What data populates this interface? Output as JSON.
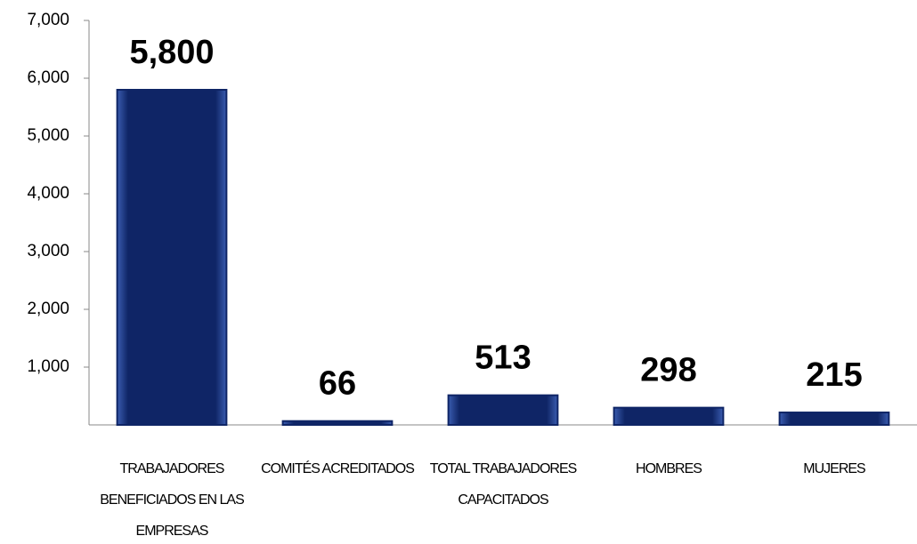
{
  "chart_data": {
    "type": "bar",
    "categories": [
      "TRABAJADORES BENEFICIADOS EN LAS EMPRESAS",
      "COMITÉS ACREDITADOS",
      "TOTAL TRABAJADORES CAPACITADOS",
      "HOMBRES",
      "MUJERES"
    ],
    "values": [
      5800,
      66,
      513,
      298,
      215
    ],
    "value_labels": [
      "5,800",
      "66",
      "513",
      "298",
      "215"
    ],
    "color": "#0f2566",
    "ylim": [
      0,
      7000
    ],
    "yticks": [
      {
        "value": 1000,
        "label": "1,000"
      },
      {
        "value": 2000,
        "label": "2,000"
      },
      {
        "value": 3000,
        "label": "3,000"
      },
      {
        "value": 4000,
        "label": "4,000"
      },
      {
        "value": 5000,
        "label": "5,000"
      },
      {
        "value": 6000,
        "label": "6,000"
      },
      {
        "value": 7000,
        "label": "7,000"
      }
    ],
    "grid": false
  }
}
